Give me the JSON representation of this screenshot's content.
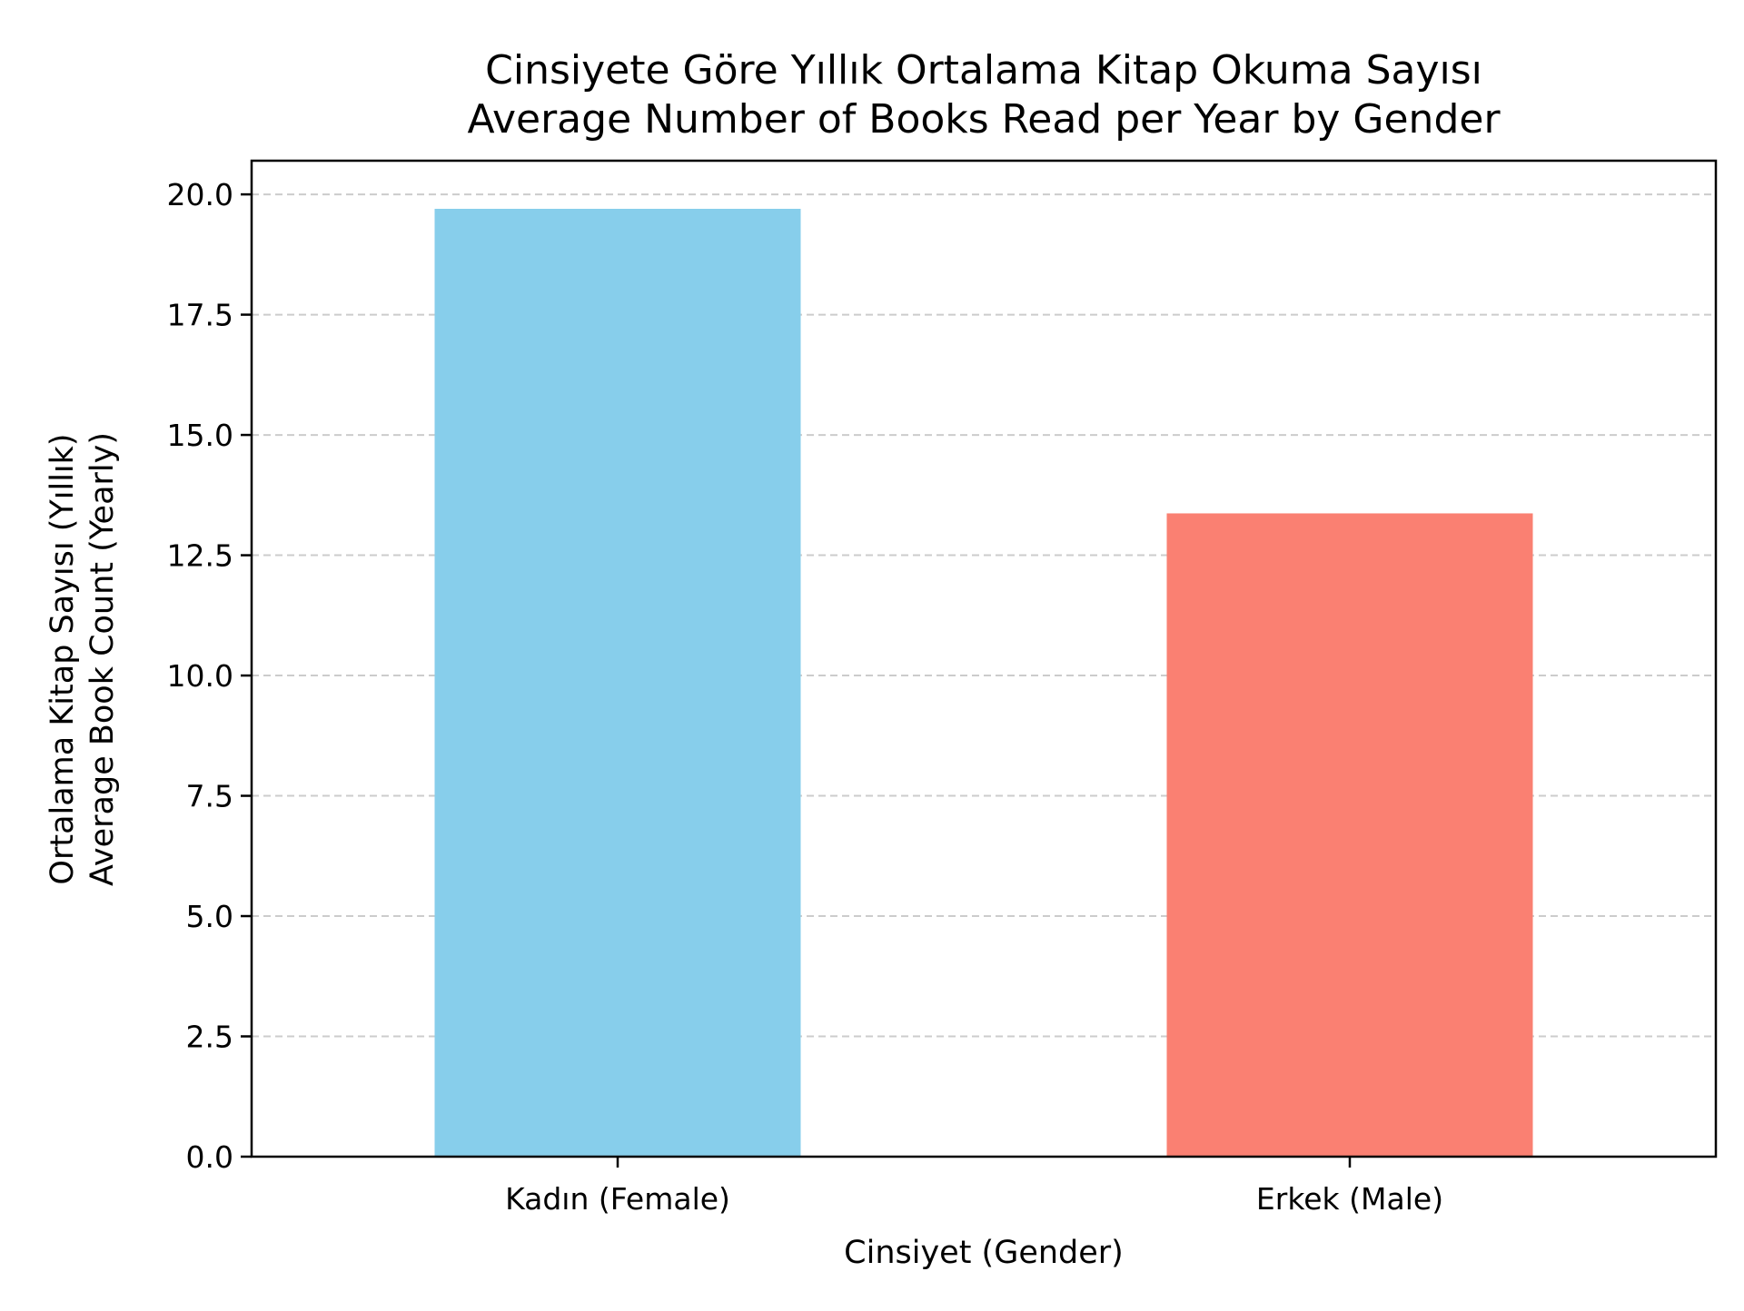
{
  "chart_data": {
    "type": "bar",
    "title": [
      "Cinsiyete Göre Yıllık Ortalama Kitap Okuma Sayısı",
      "Average Number of Books Read per Year by Gender"
    ],
    "xlabel": "Cinsiyet (Gender)",
    "ylabel": [
      "Ortalama Kitap Sayısı (Yıllık)",
      "Average Book Count (Yearly)"
    ],
    "categories": [
      "Kadın (Female)",
      "Erkek (Male)"
    ],
    "values": [
      19.7,
      13.37
    ],
    "colors": [
      "#87CEEB",
      "#FA8072"
    ],
    "ylim": [
      0,
      20.7
    ],
    "yticks": [
      0,
      2.5,
      5,
      7.5,
      10,
      12.5,
      15,
      17.5,
      20
    ],
    "ytick_labels": [
      "0.0",
      "2.5",
      "5.0",
      "7.5",
      "10.0",
      "12.5",
      "15.0",
      "17.5",
      "20.0"
    ],
    "grid": "y-dashed",
    "legend": "none"
  }
}
